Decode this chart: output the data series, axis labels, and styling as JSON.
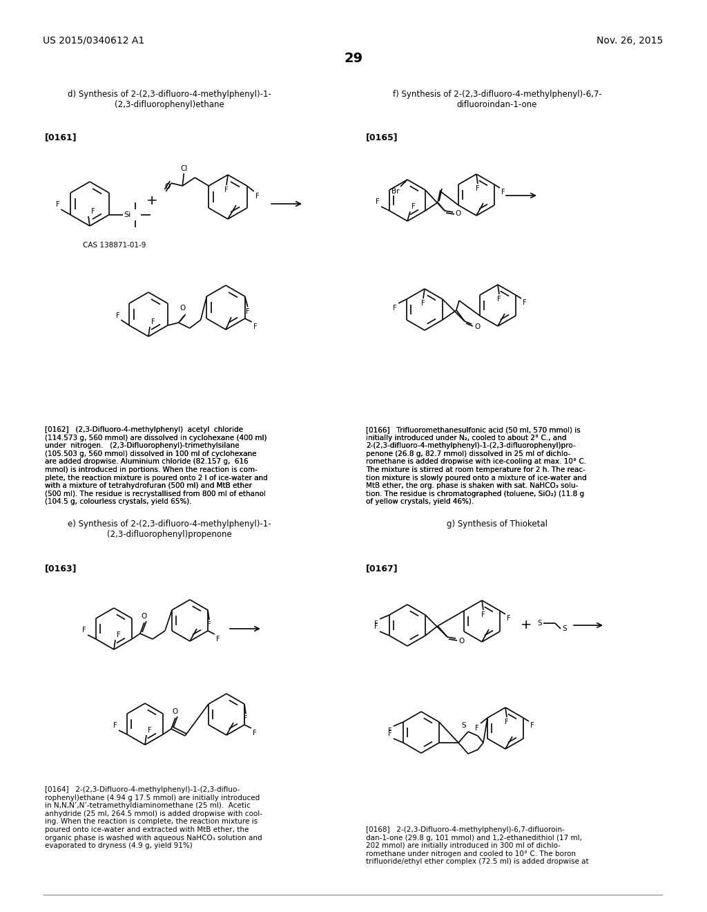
{
  "background_color": "#ffffff",
  "figsize": [
    10.24,
    13.2
  ],
  "dpi": 100,
  "header_left": "US 2015/0340612 A1",
  "header_right": "Nov. 26, 2015",
  "header_center": "29",
  "d_title": "d) Synthesis of 2-(2,3-difluoro-4-methylphenyl)-1-\n(2,3-difluorophenyl)ethane",
  "f_title": "f) Synthesis of 2-(2,3-difluoro-4-methylphenyl)-6,7-\ndifluoroindan-1-one",
  "e_title": "e) Synthesis of 2-(2,3-difluoro-4-methylphenyl)-1-\n(2,3-difluorophenyl)propenone",
  "g_title": "g) Synthesis of Thioketal",
  "p0161": "[0161]",
  "p0162_text": "[0162]   (2,3-Difluoro-4-methylphenyl)  acetyl  chloride\n(114.573 g, 560 mmol) are dissolved in cyclohexane (400 ml)\nunder  nitrogen.   (2,3-Difluorophenyl)-trimethylsilane\n(105.503 g, 560 mmol) dissolved in 100 ml of cyclohexane\nare added dropwise. Aluminium chloride (82.157 g,  616\nmmol) is introduced in portions. When the reaction is com-\nplete, the reaction mixture is poured onto 2 l of ice-water and\nwith a mixture of tetrahydrofuran (500 ml) and MtB ether\n(500 ml). The residue is recrystallised from 800 ml of ethanol\n(104.5 g, colourless crystals, yield 65%).",
  "p0163": "[0163]",
  "p0164_text": "[0164]   2-(2,3-Difluoro-4-methylphenyl)-1-(2,3-difluo-\nrophenyl)ethane (4.94 g 17.5 mmol) are initially introduced\nin N,N,N’,N’-tetramethyldiaminomethane (25 ml).  Acetic\nanhydride (25 ml, 264.5 mmol) is added dropwise with cool-\ning. When the reaction is complete, the reaction mixture is\npoured onto ice-water and extracted with MtB ether, the\norganic phase is washed with aqueous NaHCO₃ solution and\nevaporated to dryness (4.9 g, yield 91%)",
  "p0165": "[0165]",
  "p0166_text": "[0166]   Trifluoromethanesulfonic acid (50 ml, 570 mmol) is\ninitially introduced under N₂, cooled to about 2° C., and\n2-(2,3-difluoro-4-methylphenyl)-1-(2,3-difluorophenyl)pro-\npenone (26.8 g, 82.7 mmol) dissolved in 25 ml of dichlo-\nromethane is added dropwise with ice-cooling at max. 10° C.\nThe mixture is stirred at room temperature for 2 h. The reac-\ntion mixture is slowly poured onto a mixture of ice-water and\nMtB ether, the org. phase is shaken with sat. NaHCO₃ solu-\ntion. The residue is chromatographed (toluene, SiO₂) (11.8 g\nof yellow crystals, yield 46%).",
  "p0167": "[0167]",
  "p0168_text": "[0168]   2-(2,3-Difluoro-4-methylphenyl)-6,7-difluoroin-\ndan-1-one (29.8 g, 101 mmol) and 1,2-ethanedithiol (17 ml,\n202 mmol) are initially introduced in 300 ml of dichlo-\nromethane under nitrogen and cooled to 10° C. The boron\ntrifluoride/ethyl ether complex (72.5 ml) is added dropwise at",
  "cas_label": "CAS 138871-01-9"
}
